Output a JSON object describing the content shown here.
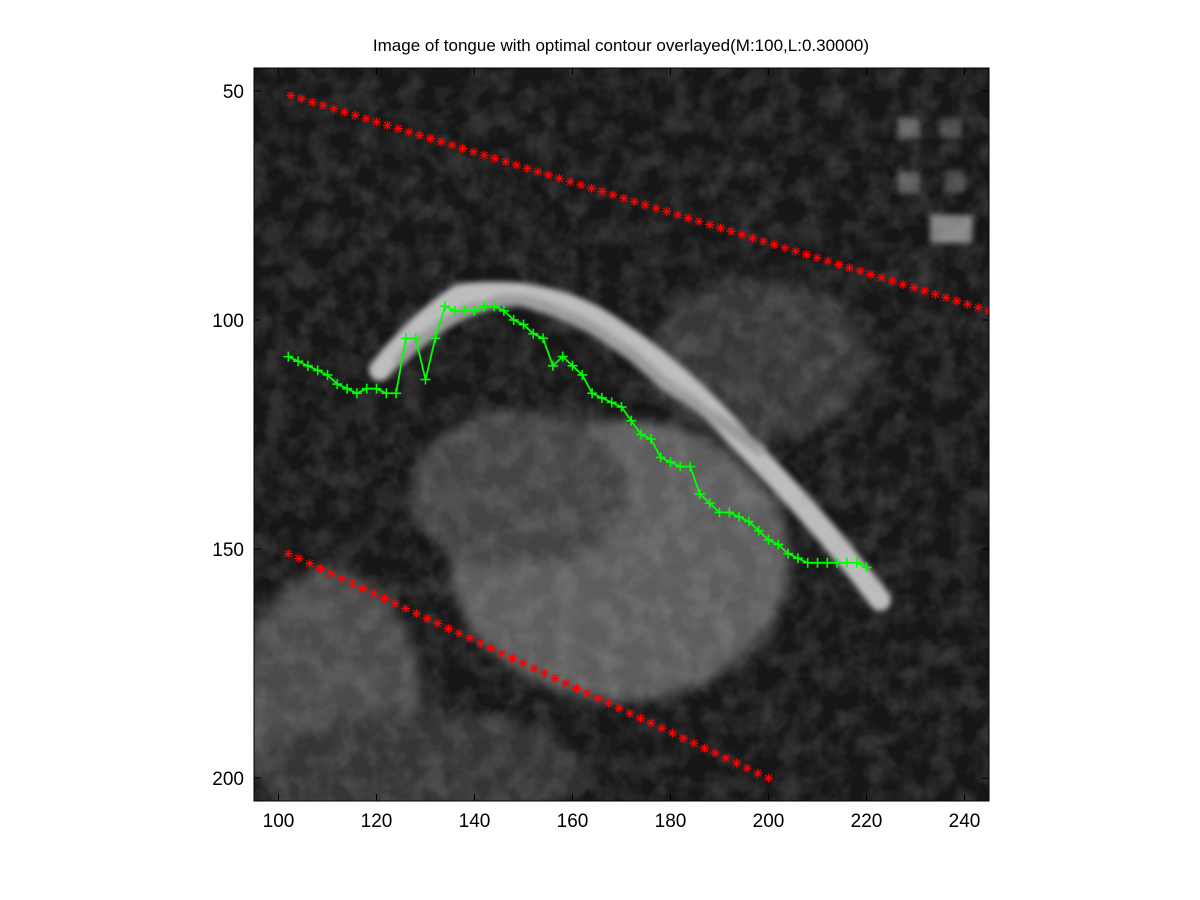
{
  "chart_data": {
    "type": "scatter",
    "title": "Image of tongue with optimal contour overlayed(M:100,L:0.30000)",
    "xlabel": "",
    "ylabel": "",
    "xlim": [
      95,
      245
    ],
    "ylim": [
      205,
      45
    ],
    "y_axis_direction": "reversed (image coordinates, top = small values)",
    "x_ticks": [
      100,
      120,
      140,
      160,
      180,
      200,
      220,
      240
    ],
    "y_ticks": [
      50,
      100,
      150,
      200
    ],
    "x_tick_labels": [
      "100",
      "120",
      "140",
      "160",
      "180",
      "200",
      "220",
      "240"
    ],
    "y_tick_labels": [
      "50",
      "100",
      "150",
      "200"
    ],
    "grid": false,
    "background": "grayscale ultrasound image of tongue",
    "series": [
      {
        "marker": "*",
        "color": "#ff0000",
        "line": false,
        "x_start": 102.5,
        "x_end": 245,
        "count": 66,
        "y_start": 51,
        "y_end": 98
      },
      {
        "marker": "*",
        "color": "#ff0000",
        "line": false,
        "x_start": 102,
        "x_end": 200,
        "count": 46,
        "y_start": 151,
        "y_end": 200
      },
      {
        "marker": "+",
        "color": "#00ff00",
        "line": true,
        "x": [
          102,
          104,
          106,
          108,
          110,
          112,
          114,
          116,
          118,
          120,
          122,
          124,
          126,
          128,
          130,
          132,
          134,
          136,
          138,
          140,
          142,
          144,
          146,
          148,
          150,
          152,
          154,
          156,
          158,
          160,
          162,
          164,
          166,
          168,
          170,
          172,
          174,
          176,
          178,
          180,
          182,
          184,
          186,
          188,
          190,
          192,
          194,
          196,
          198,
          200,
          202,
          204,
          206,
          208,
          210,
          212,
          214,
          216,
          218,
          220
        ],
        "y": [
          108,
          109,
          110,
          111,
          112,
          114,
          115,
          116,
          115,
          115,
          116,
          116,
          104,
          104,
          113,
          104,
          97,
          98,
          98,
          98,
          97,
          97,
          98,
          100,
          101,
          103,
          104,
          110,
          108,
          110,
          112,
          116,
          117,
          118,
          119,
          122,
          125,
          126,
          130,
          131,
          132,
          132,
          138,
          140,
          142,
          142,
          143,
          144,
          146,
          148,
          149,
          151,
          152,
          153,
          153,
          153,
          153,
          153,
          153,
          154
        ]
      }
    ]
  }
}
